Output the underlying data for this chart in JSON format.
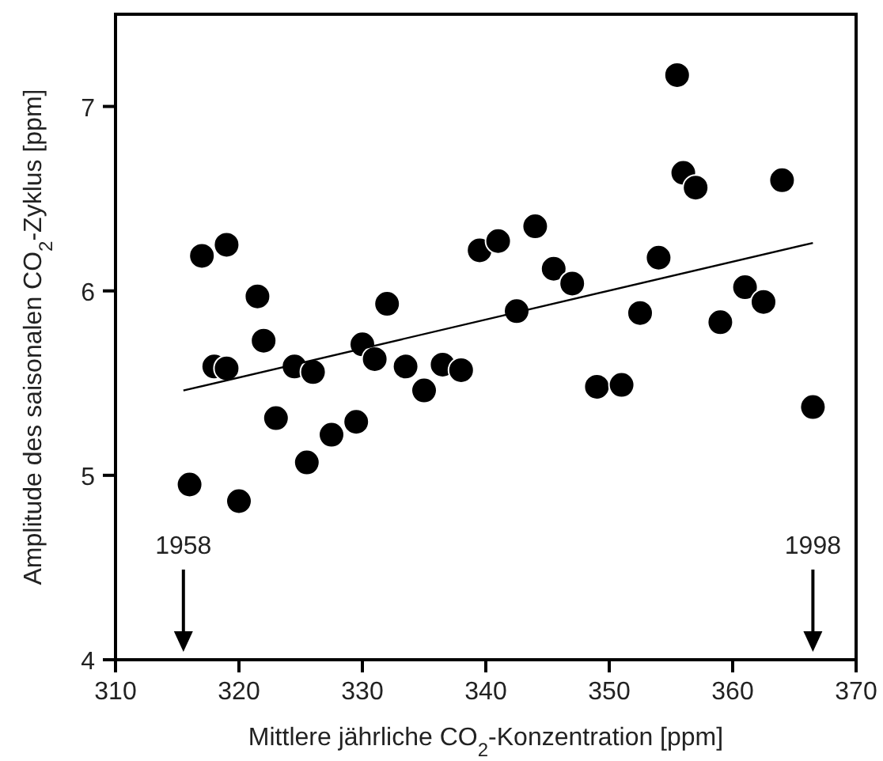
{
  "chart_data": {
    "type": "scatter",
    "xlabel": "Mittlere jährliche CO$_{2}$-Konzentration [ppm]",
    "ylabel": "Amplitude des saisonalen CO$_{2}$-Zyklus [ppm]",
    "xlim": [
      310,
      370
    ],
    "ylim": [
      4,
      7.5
    ],
    "xticks": [
      310,
      320,
      330,
      340,
      350,
      360,
      370
    ],
    "yticks": [
      4,
      5,
      6,
      7
    ],
    "grid": false,
    "series": [
      {
        "marker": "circle",
        "color": "#000000",
        "x": [
          316,
          317,
          318,
          319,
          319,
          320,
          321.5,
          322,
          323,
          324.5,
          325.5,
          326,
          327.5,
          329.5,
          330,
          331,
          332,
          333.5,
          335,
          336.5,
          338,
          339.5,
          341,
          342.5,
          344,
          345.5,
          347,
          349,
          351,
          352.5,
          354,
          355.5,
          356,
          357,
          359,
          361,
          362.5,
          364,
          366.5
        ],
        "values": [
          4.95,
          6.19,
          5.59,
          5.58,
          6.25,
          4.86,
          5.97,
          5.73,
          5.31,
          5.59,
          5.07,
          5.56,
          5.22,
          5.29,
          5.71,
          5.63,
          5.93,
          5.59,
          5.46,
          5.6,
          5.57,
          6.22,
          6.27,
          5.89,
          6.35,
          6.12,
          6.04,
          5.48,
          5.49,
          5.88,
          6.18,
          7.17,
          6.64,
          6.56,
          5.83,
          6.02,
          5.94,
          6.6,
          5.37
        ]
      },
      {
        "type": "line",
        "color": "#000000",
        "x": [
          315.5,
          366.5
        ],
        "values": [
          5.46,
          6.26
        ]
      }
    ],
    "annotations": [
      "1958",
      "1998"
    ]
  }
}
